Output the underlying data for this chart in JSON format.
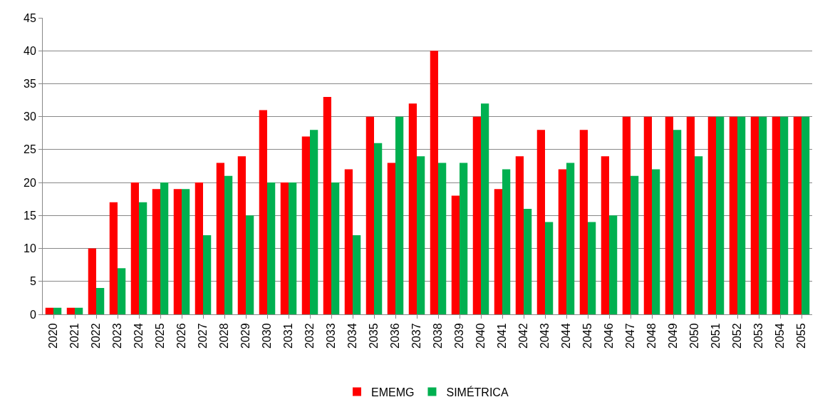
{
  "chart_data": {
    "type": "bar",
    "categories": [
      "2020",
      "2021",
      "2022",
      "2023",
      "2024",
      "2025",
      "2026",
      "2027",
      "2028",
      "2029",
      "2030",
      "2031",
      "2032",
      "2033",
      "2034",
      "2035",
      "2036",
      "2037",
      "2038",
      "2039",
      "2040",
      "2041",
      "2042",
      "2043",
      "2044",
      "2045",
      "2046",
      "2047",
      "2048",
      "2049",
      "2050",
      "2051",
      "2052",
      "2053",
      "2054",
      "2055"
    ],
    "series": [
      {
        "name": "EMEMG",
        "color": "#ff0000",
        "values": [
          1,
          1,
          10,
          17,
          20,
          19,
          19,
          20,
          23,
          24,
          31,
          20,
          27,
          33,
          22,
          30,
          23,
          32,
          40,
          18,
          30,
          19,
          24,
          28,
          22,
          28,
          24,
          30,
          30,
          30,
          30,
          30,
          30,
          30,
          30,
          30
        ]
      },
      {
        "name": "SIMÉTRICA",
        "color": "#00b050",
        "values": [
          1,
          1,
          4,
          7,
          17,
          20,
          19,
          12,
          21,
          15,
          20,
          20,
          28,
          20,
          12,
          26,
          30,
          24,
          23,
          23,
          32,
          22,
          16,
          14,
          23,
          14,
          15,
          21,
          22,
          28,
          24,
          30,
          30,
          30,
          30,
          30
        ]
      }
    ],
    "ylim": [
      0,
      45
    ],
    "yticks": [
      0,
      5,
      10,
      15,
      20,
      25,
      30,
      35,
      40,
      45
    ],
    "grid": "y",
    "legend": "bottom"
  }
}
